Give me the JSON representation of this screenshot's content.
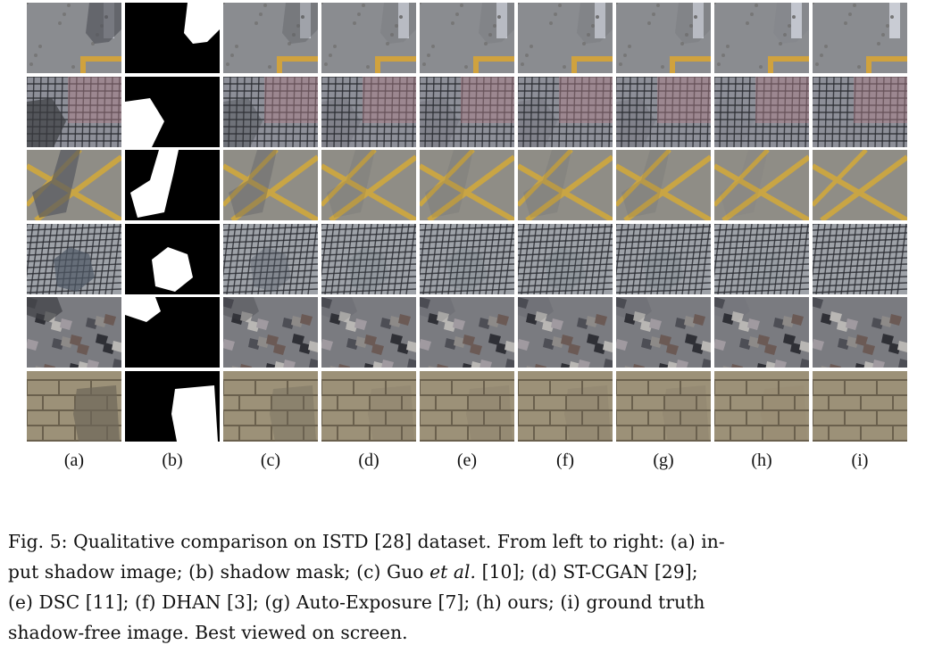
{
  "figure": {
    "column_labels": [
      "(a)",
      "(b)",
      "(c)",
      "(d)",
      "(e)",
      "(f)",
      "(g)",
      "(h)",
      "(i)"
    ],
    "column_kinds": [
      "input",
      "mask",
      "method",
      "method",
      "method",
      "method",
      "method",
      "method",
      "gt"
    ],
    "rows": [
      {
        "scene": "pavement-post",
        "base": "#8a8c90",
        "shadow": "#54565c"
      },
      {
        "scene": "grid-tiles-pink",
        "base": "#8d8f98",
        "shadow": "#3a3c40"
      },
      {
        "scene": "yellow-lines",
        "base": "#8f8d86",
        "shadow": "#55585f"
      },
      {
        "scene": "grid-tiles",
        "base": "#9ea2a8",
        "shadow": "#4f5965"
      },
      {
        "scene": "mosaic-stones",
        "base": "#7a7b80",
        "shadow": "#3f4045"
      },
      {
        "scene": "stone-wall",
        "base": "#9c9178",
        "shadow": "#6d6658"
      }
    ]
  },
  "caption": {
    "line1": "Fig. 5: Qualitative comparison on ISTD [28] dataset. From left to right: (a) in-",
    "line2": "put shadow image; (b) shadow mask; (c) Guo ",
    "line2_ital": "et al.",
    "line2_end": " [10]; (d) ST-CGAN [29];",
    "line3": "(e) DSC [11]; (f) DHAN [3]; (g) Auto-Exposure [7]; (h) ours; (i) ground truth",
    "line4": "shadow-free image. Best viewed on screen."
  }
}
